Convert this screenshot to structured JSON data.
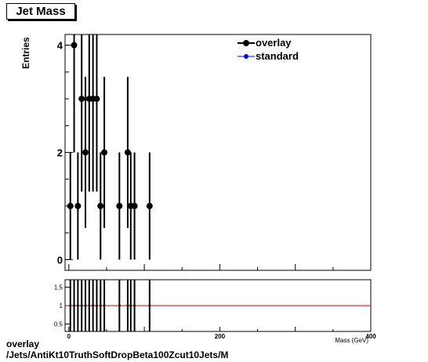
{
  "chart_data": [
    {
      "type": "scatter",
      "title": "Jet Mass",
      "ylabel": "Entries",
      "xlim": [
        -5,
        400
      ],
      "ylim": [
        -0.2,
        4.2
      ],
      "yticks": [
        0,
        2,
        4
      ],
      "legend": {
        "placement": "top-right",
        "entries": [
          "overlay",
          "standard"
        ]
      },
      "series": [
        {
          "name": "overlay",
          "color": "#000000",
          "points": [
            {
              "x": 2,
              "y": 1,
              "err": 1
            },
            {
              "x": 7,
              "y": 4,
              "err": 2
            },
            {
              "x": 12,
              "y": 1,
              "err": 1
            },
            {
              "x": 17,
              "y": 3,
              "err": 1.73
            },
            {
              "x": 22,
              "y": 2,
              "err": 1.41
            },
            {
              "x": 27,
              "y": 3,
              "err": 1.73
            },
            {
              "x": 32,
              "y": 3,
              "err": 1.73
            },
            {
              "x": 37,
              "y": 3,
              "err": 1.73
            },
            {
              "x": 42,
              "y": 1,
              "err": 1
            },
            {
              "x": 47,
              "y": 2,
              "err": 1.41
            },
            {
              "x": 67,
              "y": 1,
              "err": 1
            },
            {
              "x": 78,
              "y": 2,
              "err": 1.41
            },
            {
              "x": 82,
              "y": 1,
              "err": 1
            },
            {
              "x": 87,
              "y": 1,
              "err": 1
            },
            {
              "x": 107,
              "y": 1,
              "err": 1
            }
          ]
        },
        {
          "name": "standard",
          "color": "#0000ff",
          "points": []
        }
      ]
    },
    {
      "type": "line",
      "xlabel": "Mass (GeV)",
      "xlim": [
        -5,
        400
      ],
      "ylim": [
        0.3,
        1.7
      ],
      "yticks": [
        0.5,
        1,
        1.5
      ],
      "xticks": [
        0,
        200,
        400
      ],
      "reference_line": {
        "y": 1,
        "color": "#cc0000"
      },
      "ratio_points": [
        2,
        7,
        12,
        17,
        22,
        27,
        32,
        37,
        42,
        47,
        67,
        78,
        82,
        87,
        107
      ]
    }
  ],
  "footer": {
    "line1": "overlay",
    "line2": "/Jets/AntiKt10TruthSoftDropBeta100Zcut10Jets/M"
  }
}
